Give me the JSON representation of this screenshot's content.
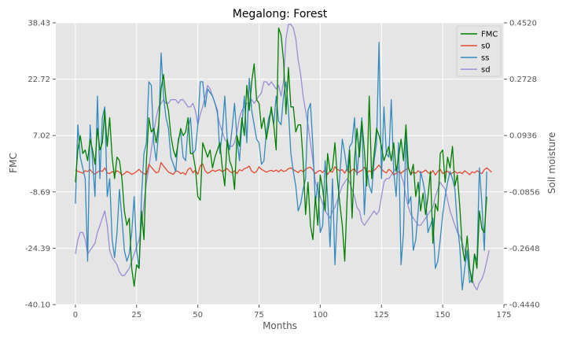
{
  "chart_data": {
    "type": "line",
    "title": "Megalong: Forest",
    "xlabel": "Months",
    "ylabel": "FMC",
    "ylabel_right": "Soil moisture",
    "xlim": [
      -8,
      175
    ],
    "ylim": [
      -40.1,
      38.43
    ],
    "ylim_right": [
      -0.444,
      0.452
    ],
    "x_ticks": [
      "0",
      "25",
      "50",
      "75",
      "100",
      "125",
      "150",
      "175"
    ],
    "y_ticks_left": [
      "38.43",
      "22.72",
      "7.02",
      "-8.69",
      "-24.39",
      "-40.10"
    ],
    "y_ticks_right": [
      "0.4520",
      "0.2728",
      "0.0936",
      "-0.0856",
      "-0.2648",
      "-0.4440"
    ],
    "grid": true,
    "legend_position": "top-right",
    "colors": {
      "FMC": "#008000",
      "s0": "#e24a33",
      "ss": "#348abd",
      "sd": "#988ed5",
      "plot_bg": "#e5e5e5",
      "grid": "#ffffff"
    },
    "series": [
      {
        "name": "FMC",
        "axis": "left",
        "x0": 0,
        "dx": 1,
        "values": [
          -6.0,
          3.0,
          7.0,
          2.0,
          3.0,
          0.0,
          6.0,
          3.0,
          -1.0,
          9.0,
          3.0,
          5.0,
          14.0,
          4.0,
          12.0,
          1.0,
          -5.0,
          1.0,
          0.0,
          -5.0,
          -14.0,
          -18.0,
          -16.0,
          -30.0,
          -35.0,
          -29.0,
          -30.0,
          -14.0,
          -22.0,
          0.0,
          12.0,
          8.0,
          9.0,
          5.0,
          10.0,
          20.0,
          24.0,
          17.0,
          14.0,
          7.0,
          3.0,
          1.0,
          5.0,
          9.0,
          7.0,
          8.0,
          12.0,
          2.0,
          2.0,
          -2.0,
          -10.0,
          -11.0,
          5.0,
          3.0,
          1.0,
          3.0,
          -2.0,
          1.0,
          3.0,
          5.0,
          -2.0,
          -7.0,
          6.0,
          0.0,
          -2.0,
          -8.0,
          7.0,
          4.0,
          12.0,
          7.0,
          21.0,
          14.0,
          22.0,
          27.0,
          17.0,
          16.0,
          9.0,
          12.0,
          6.0,
          10.0,
          15.0,
          10.0,
          3.0,
          37.0,
          35.0,
          28.0,
          13.0,
          26.0,
          15.0,
          15.0,
          8.0,
          10.0,
          10.0,
          0.0,
          -15.0,
          -6.0,
          -18.0,
          -22.0,
          -10.0,
          -18.0,
          -4.0,
          -8.0,
          -14.0,
          2.0,
          -3.0,
          -2.0,
          5.0,
          -5.0,
          -12.0,
          -18.0,
          -28.0,
          -10.0,
          3.0,
          -16.0,
          0.0,
          9.0,
          1.0,
          11.0,
          3.0,
          -7.0,
          18.0,
          -5.0,
          2.0,
          9.0,
          7.0,
          4.0,
          0.0,
          2.0,
          4.0,
          0.0,
          5.0,
          -3.0,
          1.0,
          6.0,
          0.0,
          10.0,
          -2.0,
          -4.0,
          -1.0,
          -10.0,
          -6.0,
          -14.0,
          -9.0,
          -15.0,
          -10.0,
          -3.0,
          -23.0,
          -12.0,
          -14.0,
          2.0,
          3.0,
          -6.0,
          1.0,
          -2.0,
          4.0,
          -7.0,
          -4.0,
          -13.0,
          -24.0,
          -28.0,
          -21.0,
          -30.0,
          -34.0,
          -26.0,
          -30.0,
          -14.0,
          -19.0,
          -20.0,
          -10.0
        ]
      },
      {
        "name": "s0",
        "axis": "left",
        "x0": 0,
        "dx": 1,
        "values": [
          -2.5,
          -3.0,
          -3.2,
          -3.5,
          -2.8,
          -3.0,
          -2.5,
          -3.3,
          -3.8,
          -3.2,
          -2.7,
          -3.0,
          -2.0,
          -3.4,
          -3.6,
          -3.0,
          -3.5,
          -2.8,
          -3.2,
          -4.0,
          -3.6,
          -3.0,
          -3.3,
          -3.8,
          -3.5,
          -3.0,
          -2.4,
          -3.2,
          -3.6,
          -3.9,
          -1.0,
          -1.8,
          -2.6,
          -3.4,
          -3.1,
          -0.5,
          -1.5,
          -2.3,
          -3.2,
          -3.5,
          -3.8,
          -2.8,
          -3.0,
          -3.6,
          -3.3,
          -3.9,
          -2.4,
          -2.0,
          -3.4,
          -2.6,
          -3.8,
          -1.4,
          -0.9,
          -2.8,
          -3.5,
          -3.2,
          -2.6,
          -3.0,
          -2.7,
          -2.5,
          -3.1,
          -2.6,
          -2.2,
          -3.0,
          -3.4,
          -2.8,
          -3.6,
          -2.5,
          -2.8,
          -2.2,
          -2.0,
          -1.5,
          -2.9,
          -3.4,
          -3.0,
          -1.7,
          -2.4,
          -2.8,
          -3.2,
          -2.9,
          -2.7,
          -3.0,
          -2.6,
          -3.1,
          -2.5,
          -3.0,
          -2.8,
          -2.2,
          -2.0,
          -2.5,
          -2.9,
          -3.3,
          -2.6,
          -3.1,
          -2.4,
          -2.0,
          -1.8,
          -2.6,
          -3.6,
          -3.0,
          -2.7,
          -3.3,
          -2.4,
          -3.8,
          -2.9,
          -3.2,
          -1.7,
          -2.4,
          -2.8,
          -2.5,
          -3.5,
          -2.0,
          -3.3,
          -2.6,
          -2.2,
          -3.6,
          -3.0,
          -2.7,
          -1.8,
          -3.5,
          -2.8,
          -3.2,
          -2.7,
          -2.0,
          -1.2,
          -2.3,
          -3.0,
          -3.4,
          -2.4,
          -2.9,
          -4.0,
          -3.5,
          -3.0,
          -3.5,
          -2.9,
          -2.5,
          -1.9,
          -3.8,
          -3.2,
          -3.5,
          -2.8,
          -3.4,
          -3.1,
          -2.6,
          -3.3,
          -3.7,
          -2.7,
          -4.0,
          -3.0,
          -2.4,
          -3.6,
          -3.2,
          -2.9,
          -3.8,
          -3.4,
          -3.0,
          -3.5,
          -3.2,
          -3.6,
          -2.8,
          -3.3,
          -3.9,
          -3.1,
          -3.4,
          -2.8,
          -3.2,
          -3.6,
          -2.5,
          -2.0,
          -2.6,
          -3.2
        ]
      },
      {
        "name": "ss",
        "axis": "left",
        "x0": 0,
        "dx": 1,
        "values": [
          -12.0,
          10.0,
          1.0,
          -2.0,
          -5.0,
          -28.0,
          10.0,
          0.0,
          -10.0,
          18.0,
          -5.0,
          12.0,
          15.0,
          -10.0,
          -5.0,
          -22.0,
          -27.0,
          -20.0,
          -8.0,
          -16.0,
          -25.0,
          -28.0,
          -26.0,
          -20.0,
          -10.0,
          -25.0,
          -30.0,
          -10.0,
          2.0,
          5.0,
          22.0,
          21.0,
          5.0,
          0.0,
          8.0,
          30.0,
          18.0,
          12.0,
          9.0,
          1.0,
          -1.0,
          -3.0,
          6.0,
          8.0,
          1.0,
          0.0,
          9.0,
          12.0,
          2.0,
          3.0,
          10.0,
          22.0,
          22.0,
          15.0,
          20.0,
          19.0,
          18.0,
          16.0,
          14.0,
          2.0,
          8.0,
          18.0,
          6.0,
          3.0,
          9.0,
          16.0,
          6.0,
          0.0,
          10.0,
          18.0,
          5.0,
          23.0,
          14.0,
          10.0,
          6.0,
          5.0,
          -1.0,
          0.0,
          8.0,
          12.0,
          14.0,
          10.0,
          18.0,
          11.0,
          10.0,
          18.0,
          22.0,
          14.0,
          2.0,
          -3.0,
          -7.0,
          -14.0,
          -12.0,
          -8.0,
          -5.0,
          14.0,
          16.0,
          4.0,
          -12.0,
          -6.0,
          -20.0,
          -18.0,
          0.0,
          -10.0,
          -24.0,
          -5.0,
          -29.0,
          -14.0,
          -4.0,
          6.0,
          2.0,
          -3.0,
          4.0,
          5.0,
          12.0,
          -4.0,
          4.0,
          12.0,
          -15.0,
          -2.0,
          -7.0,
          -9.0,
          0.0,
          5.0,
          33.0,
          -5.0,
          15.0,
          2.0,
          1.0,
          17.0,
          -3.0,
          -10.0,
          5.0,
          -29.0,
          -20.0,
          8.0,
          -12.0,
          -10.0,
          -25.0,
          -22.0,
          -14.0,
          -3.0,
          -6.0,
          -10.0,
          -20.0,
          -18.0,
          -16.0,
          -30.0,
          -28.0,
          -22.0,
          -15.0,
          -10.0,
          -6.0,
          -3.0,
          -5.0,
          -8.0,
          -18.0,
          -24.0,
          -36.0,
          -30.0,
          -25.0,
          -34.0,
          -33.0,
          -26.0,
          -28.0,
          -2.0,
          -12.0,
          -25.0,
          -3.0
        ]
      },
      {
        "name": "sd",
        "axis": "left",
        "x0": 0,
        "dx": 1,
        "values": [
          -26.0,
          -22.0,
          -20.0,
          -20.0,
          -22.0,
          -26.0,
          -25.0,
          -24.0,
          -23.0,
          -20.0,
          -18.0,
          -16.0,
          -14.0,
          -18.0,
          -25.0,
          -27.0,
          -28.0,
          -29.0,
          -31.0,
          -32.0,
          -32.0,
          -31.0,
          -30.0,
          -28.0,
          -26.0,
          -24.0,
          -22.0,
          -18.0,
          -12.0,
          -6.0,
          -2.0,
          3.0,
          8.0,
          12.0,
          15.0,
          16.0,
          17.0,
          16.0,
          16.0,
          17.0,
          17.0,
          17.0,
          16.0,
          17.0,
          17.0,
          16.0,
          15.0,
          15.0,
          16.0,
          14.0,
          10.0,
          13.0,
          15.0,
          18.0,
          21.0,
          20.0,
          18.0,
          16.0,
          13.0,
          10.0,
          8.0,
          6.0,
          5.0,
          4.0,
          4.0,
          5.0,
          8.0,
          12.0,
          14.0,
          15.0,
          16.0,
          16.0,
          17.0,
          16.0,
          17.0,
          18.0,
          19.0,
          22.0,
          22.0,
          21.0,
          22.0,
          21.0,
          20.0,
          21.0,
          18.0,
          22.0,
          34.0,
          38.0,
          38.0,
          37.0,
          34.0,
          28.0,
          24.0,
          18.0,
          14.0,
          10.0,
          5.0,
          0.0,
          -6.0,
          -8.0,
          -10.0,
          -12.0,
          -14.0,
          -15.0,
          -16.0,
          -14.0,
          -13.0,
          -11.0,
          -9.0,
          -7.0,
          -6.0,
          -5.0,
          -6.0,
          -8.0,
          -10.0,
          -13.0,
          -14.0,
          -17.0,
          -18.0,
          -17.0,
          -16.0,
          -15.0,
          -14.0,
          -15.0,
          -14.0,
          -10.0,
          -6.0,
          -5.0,
          -5.0,
          -4.0,
          -3.0,
          -2.0,
          -2.0,
          -4.0,
          -6.0,
          -10.0,
          -13.0,
          -15.0,
          -16.0,
          -17.0,
          -18.0,
          -18.0,
          -17.0,
          -16.0,
          -15.0,
          -14.0,
          -13.0,
          -10.0,
          -8.0,
          -6.0,
          -7.0,
          -8.0,
          -11.0,
          -14.0,
          -16.0,
          -18.0,
          -20.0,
          -21.0,
          -23.0,
          -25.0,
          -27.0,
          -30.0,
          -33.0,
          -35.0,
          -36.0,
          -34.0,
          -33.0,
          -31.0,
          -28.0,
          -25.0
        ]
      }
    ]
  }
}
